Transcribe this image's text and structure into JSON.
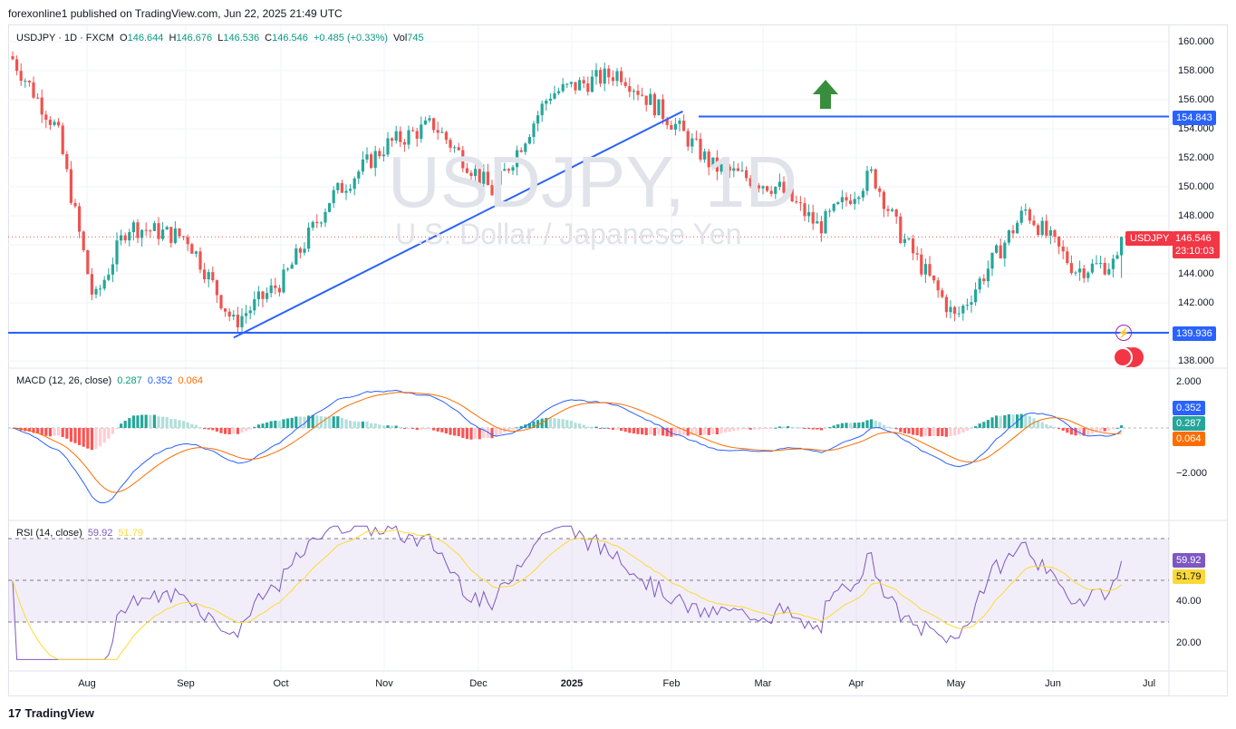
{
  "header": {
    "published_line": "forexonline1 published on TradingView.com, Jun 22, 2025 21:49 UTC"
  },
  "main_legend": {
    "symbol": "USDJPY · 1D · FXCM",
    "o_label": "O",
    "o_value": "146.644",
    "h_label": "H",
    "h_value": "146.676",
    "l_label": "L",
    "l_value": "146.536",
    "c_label": "C",
    "c_value": "146.546",
    "change": "+0.485 (+0.33%)",
    "vol_label": "Vol",
    "vol_value": "745"
  },
  "watermark": {
    "title": "USDJPY, 1D",
    "subtitle": "U.S. Dollar / Japanese Yen"
  },
  "price_axis": {
    "ticks": [
      "160.000",
      "158.000",
      "156.000",
      "154.000",
      "152.000",
      "150.000",
      "148.000",
      "146.000",
      "144.000",
      "142.000",
      "140.000",
      "138.000"
    ],
    "level_high": "154.843",
    "level_low": "139.936",
    "symbol_tag": "USDJPY",
    "last_price": "146.546",
    "countdown": "23:10:03"
  },
  "macd": {
    "legend_name": "MACD (12, 26, close)",
    "hist_value": "0.287",
    "macd_value": "0.352",
    "signal_value": "0.064",
    "ticks": [
      "2.000",
      "−2.000"
    ]
  },
  "rsi": {
    "legend_name": "RSI (14, close)",
    "rsi_value": "59.92",
    "ma_value": "51.79",
    "ticks": [
      "40.00",
      "20.00"
    ]
  },
  "x_axis": {
    "labels": [
      "Aug",
      "Sep",
      "Oct",
      "Nov",
      "Dec",
      "2025",
      "Feb",
      "Mar",
      "Apr",
      "May",
      "Jun",
      "Jul"
    ]
  },
  "footer": {
    "brand": "TradingView",
    "logo": "17"
  },
  "colors": {
    "up": "#26a69a",
    "down": "#ef5350",
    "line_blue": "#2962ff",
    "macd_line": "#2962ff",
    "signal_line": "#ff6d00",
    "rsi_line": "#7e57c2",
    "rsi_ma": "#fdd835",
    "arrow": "#388e3c"
  },
  "chart_data": {
    "type": "candlestick",
    "title": "USDJPY, 1D",
    "subtitle": "U.S. Dollar / Japanese Yen",
    "x_range": [
      "2024-07-11",
      "2025-06-22"
    ],
    "ylim": [
      137.5,
      161.0
    ],
    "approx_closes": [
      {
        "date": "2024-07-11",
        "close": 159.0
      },
      {
        "date": "2024-07-25",
        "close": 153.9
      },
      {
        "date": "2024-08-05",
        "close": 142.0
      },
      {
        "date": "2024-08-15",
        "close": 147.3
      },
      {
        "date": "2024-09-02",
        "close": 146.5
      },
      {
        "date": "2024-09-16",
        "close": 140.6
      },
      {
        "date": "2024-10-01",
        "close": 143.6
      },
      {
        "date": "2024-10-15",
        "close": 149.2
      },
      {
        "date": "2024-11-01",
        "close": 152.9
      },
      {
        "date": "2024-11-15",
        "close": 154.3
      },
      {
        "date": "2024-12-03",
        "close": 149.6
      },
      {
        "date": "2024-12-20",
        "close": 156.4
      },
      {
        "date": "2025-01-10",
        "close": 157.9
      },
      {
        "date": "2025-01-27",
        "close": 154.2
      },
      {
        "date": "2025-02-07",
        "close": 151.4
      },
      {
        "date": "2025-02-27",
        "close": 149.9
      },
      {
        "date": "2025-03-11",
        "close": 147.2
      },
      {
        "date": "2025-03-27",
        "close": 150.9
      },
      {
        "date": "2025-04-04",
        "close": 146.9
      },
      {
        "date": "2025-04-21",
        "close": 140.9
      },
      {
        "date": "2025-05-12",
        "close": 148.4
      },
      {
        "date": "2025-05-27",
        "close": 144.3
      },
      {
        "date": "2025-06-10",
        "close": 144.8
      },
      {
        "date": "2025-06-20",
        "close": 146.546
      }
    ],
    "horizontal_levels": [
      154.843,
      139.936
    ],
    "trendline": {
      "from": {
        "date": "2024-09-16",
        "price": 139.6
      },
      "to": {
        "date": "2025-01-29",
        "price": 155.2
      }
    },
    "annotation": "green up arrow",
    "macd": {
      "macd": 0.352,
      "signal": 0.064,
      "histogram": 0.287,
      "ylim": [
        -3.3,
        2.6
      ]
    },
    "rsi": {
      "rsi": 59.92,
      "rsi_ma": 51.79,
      "bands": [
        30,
        70
      ],
      "ylim": [
        8,
        78
      ]
    }
  }
}
